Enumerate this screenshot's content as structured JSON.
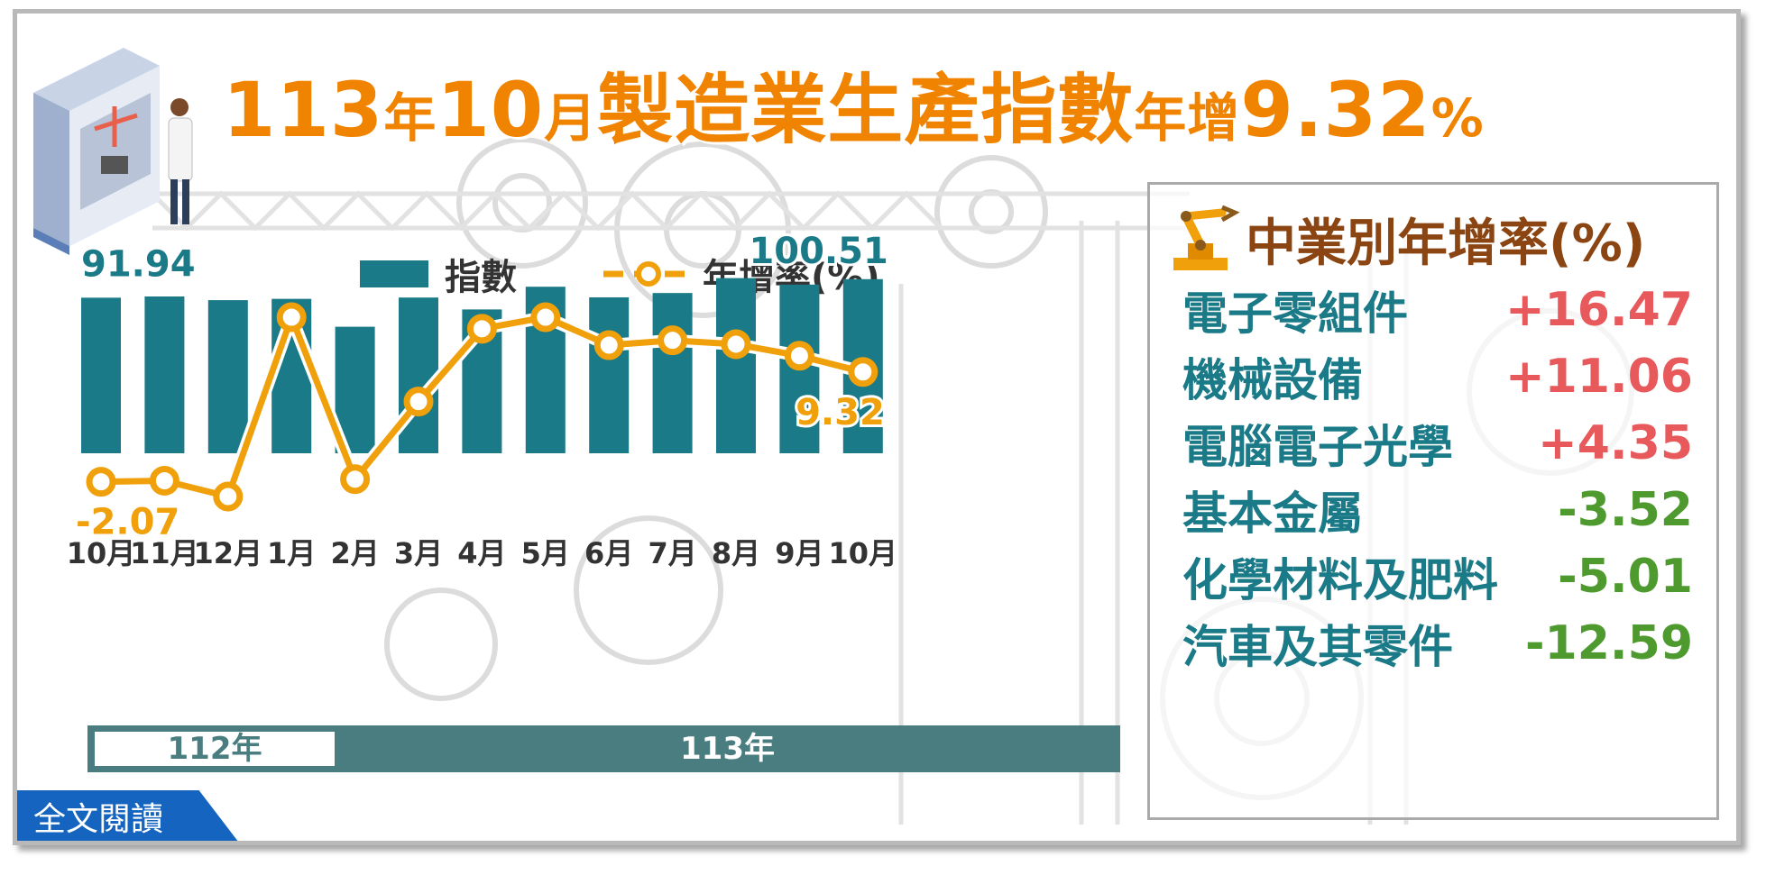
{
  "title": {
    "part1": "113",
    "part2": "年",
    "part3": "10",
    "part4": "月",
    "part5": "製造業生產指數",
    "part6": "年增",
    "part7": "9.32",
    "part8": "%"
  },
  "legend": {
    "bar_label": "指數",
    "line_label": "年增率(%)"
  },
  "year_band": {
    "y112": "112年",
    "y113": "113年"
  },
  "read_button": "全文閱讀",
  "colors": {
    "bar": "#1a7a87",
    "line": "#f0a00a",
    "title": "#f08300",
    "positive": "#e8595c",
    "negative": "#4e9a2e",
    "band": "#4a7d7f"
  },
  "chart_data": {
    "type": "bar+line",
    "categories": [
      "10月",
      "11月",
      "12月",
      "1月",
      "2月",
      "3月",
      "4月",
      "5月",
      "6月",
      "7月",
      "8月",
      "9月",
      "10月"
    ],
    "series": [
      {
        "name": "指數",
        "type": "bar",
        "values": [
          91.94,
          92.5,
          90.8,
          91.4,
          78.5,
          92.0,
          86.5,
          97.0,
          92.1,
          94.1,
          101.0,
          98.0,
          100.51
        ]
      },
      {
        "name": "年增率(%)",
        "type": "line",
        "values": [
          -2.07,
          -1.96,
          -3.6,
          15.0,
          -1.8,
          6.25,
          13.8,
          15.0,
          12.1,
          12.6,
          12.2,
          11.0,
          9.32
        ]
      }
    ],
    "data_labels": {
      "bar_first": "91.94",
      "bar_last": "100.51",
      "line_first": "-2.07",
      "line_last": "9.32"
    },
    "year_groups": [
      {
        "label": "112年",
        "count": 3
      },
      {
        "label": "113年",
        "count": 10
      }
    ]
  },
  "industry_panel": {
    "title": "中業別年增率(%)",
    "icon": "robot-arm-icon",
    "rows": [
      {
        "name": "電子零組件",
        "value": "+16.47",
        "sign": "positive"
      },
      {
        "name": "機械設備",
        "value": "+11.06",
        "sign": "positive"
      },
      {
        "name": "電腦電子光學",
        "value": "+4.35",
        "sign": "positive"
      },
      {
        "name": "基本金屬",
        "value": "-3.52",
        "sign": "negative"
      },
      {
        "name": "化學材料及肥料",
        "value": "-5.01",
        "sign": "negative"
      },
      {
        "name": "汽車及其零件",
        "value": "-12.59",
        "sign": "negative"
      }
    ]
  }
}
